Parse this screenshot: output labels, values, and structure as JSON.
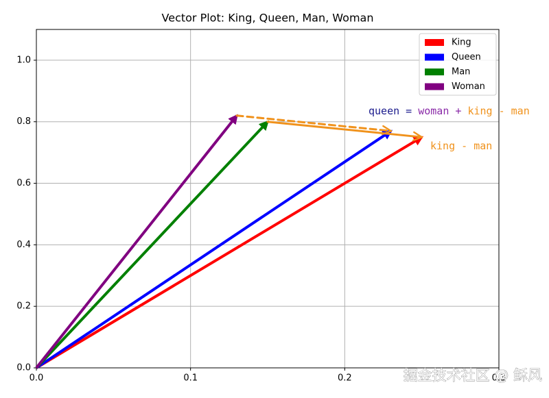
{
  "chart_data": {
    "type": "vector",
    "title": "Vector Plot: King, Queen, Man, Woman",
    "series": [
      {
        "name": "King",
        "color": "#ff0000",
        "x": [
          0,
          0.25
        ],
        "values": [
          0,
          0.75
        ]
      },
      {
        "name": "Queen",
        "color": "#0000ff",
        "x": [
          0,
          0.23
        ],
        "values": [
          0,
          0.77
        ]
      },
      {
        "name": "Man",
        "color": "#008000",
        "x": [
          0,
          0.15
        ],
        "values": [
          0,
          0.8
        ]
      },
      {
        "name": "Woman",
        "color": "#800080",
        "x": [
          0,
          0.13
        ],
        "values": [
          0,
          0.82
        ]
      }
    ],
    "arrows": [
      {
        "x": [
          0.13,
          0.23
        ],
        "values": [
          0.82,
          0.77
        ],
        "color": "#f0921c",
        "dashed": true
      },
      {
        "x": [
          0.15,
          0.25
        ],
        "values": [
          0.8,
          0.75
        ],
        "color": "#f0921c",
        "dashed": false
      }
    ],
    "annotations": [
      {
        "parts": [
          {
            "text": "queen =",
            "color": "#1a1a8c"
          },
          {
            "text": "woman +",
            "color": "#8a2aa8"
          },
          {
            "text": "king - man",
            "color": "#f0921c"
          }
        ]
      },
      {
        "parts": [
          {
            "text": "king - man",
            "color": "#f0921c"
          }
        ]
      }
    ],
    "xlim": [
      0,
      0.3
    ],
    "ylim": [
      0,
      1.1
    ],
    "xticks": [
      {
        "value": 0,
        "label": "0.0"
      },
      {
        "value": 0.1,
        "label": "0.1"
      },
      {
        "value": 0.2,
        "label": "0.2"
      },
      {
        "value": 0.3,
        "label": "0.3"
      }
    ],
    "yticks": [
      {
        "value": 0,
        "label": "0.0"
      },
      {
        "value": 0.2,
        "label": "0.2"
      },
      {
        "value": 0.4,
        "label": "0.4"
      },
      {
        "value": 0.6,
        "label": "0.6"
      },
      {
        "value": 0.8,
        "label": "0.8"
      },
      {
        "value": 1.0,
        "label": "1.0"
      }
    ],
    "grid": true,
    "legend": "upper right",
    "watermark": "掘金技术社区 @ 稣风"
  }
}
